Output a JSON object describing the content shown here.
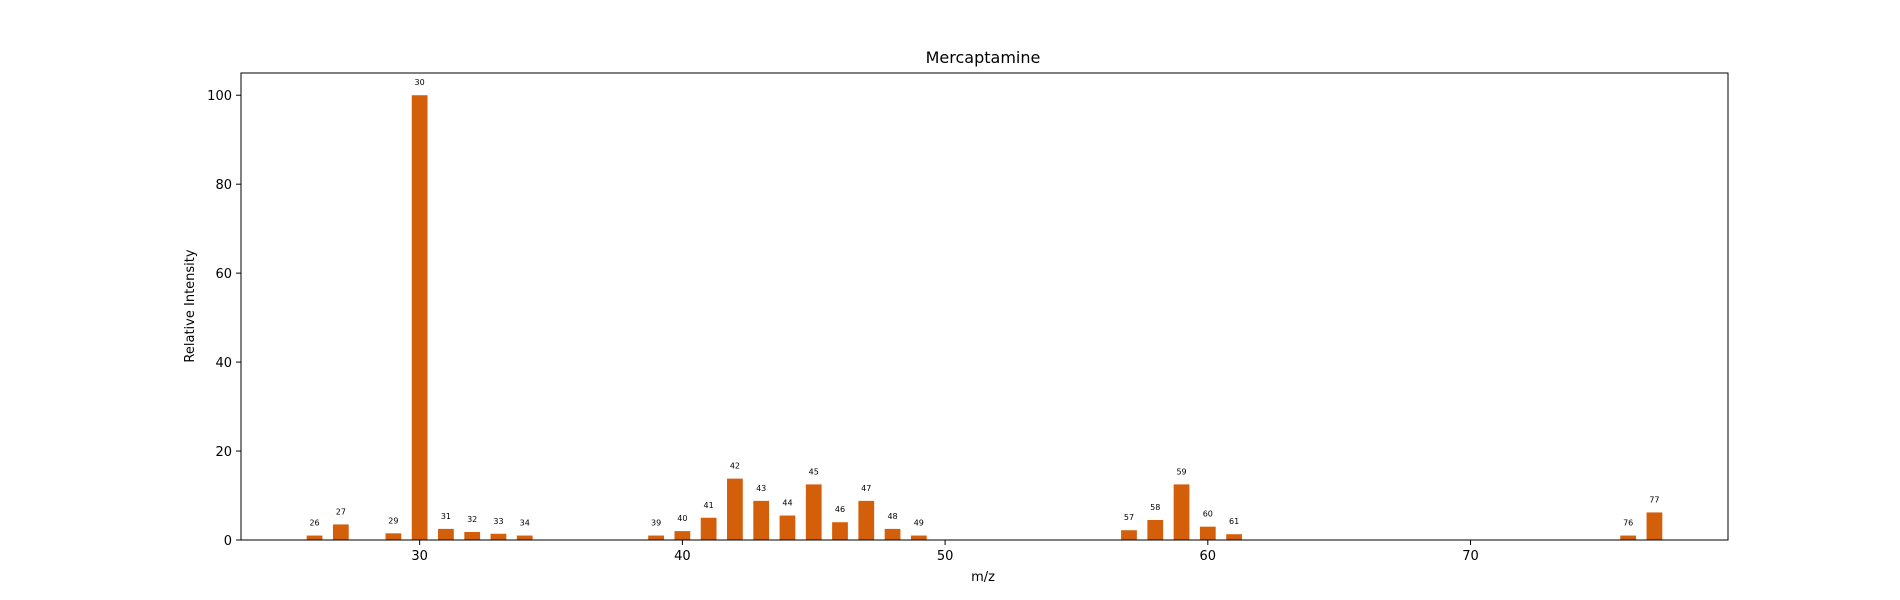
{
  "chart_data": {
    "type": "bar",
    "title": "Mercaptamine",
    "xlabel": "m/z",
    "ylabel": "Relative Intensity",
    "xlim": [
      23.2,
      79.8
    ],
    "ylim": [
      0,
      105
    ],
    "xticks": [
      30,
      40,
      50,
      60,
      70
    ],
    "yticks": [
      0,
      20,
      40,
      60,
      80,
      100
    ],
    "bar_color": "#d35f0a",
    "grid": false,
    "bar_width": 0.6,
    "x": [
      26,
      27,
      29,
      30,
      31,
      32,
      33,
      34,
      39,
      40,
      41,
      42,
      43,
      44,
      45,
      46,
      47,
      48,
      49,
      57,
      58,
      59,
      60,
      61,
      76,
      77
    ],
    "values": [
      1.0,
      3.5,
      1.5,
      100,
      2.5,
      1.8,
      1.4,
      1.0,
      1.0,
      2.0,
      5.0,
      13.8,
      8.8,
      5.5,
      12.5,
      4.0,
      8.8,
      2.5,
      1.0,
      2.2,
      4.5,
      12.5,
      3.0,
      1.3,
      1.0,
      6.2
    ],
    "labels": [
      "26",
      "27",
      "29",
      "30",
      "31",
      "32",
      "33",
      "34",
      "39",
      "40",
      "41",
      "42",
      "43",
      "44",
      "45",
      "46",
      "47",
      "48",
      "49",
      "57",
      "58",
      "59",
      "60",
      "61",
      "76",
      "77"
    ]
  }
}
